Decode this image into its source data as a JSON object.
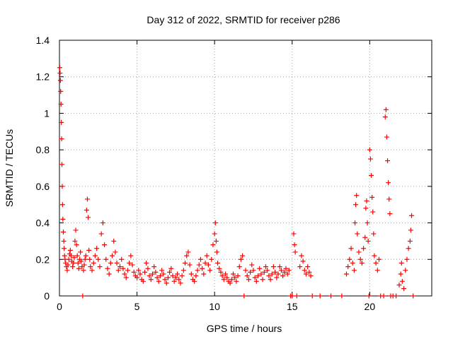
{
  "chart_data": {
    "type": "scatter",
    "title": "Day 312 of 2022, SRMTID for receiver p286",
    "xlabel": "GPS time / hours",
    "ylabel": "SRMTID / TECUs",
    "xlim": [
      0,
      24
    ],
    "ylim": [
      0,
      1.4
    ],
    "xticks": [
      0,
      5,
      10,
      15,
      20
    ],
    "yticks": [
      0,
      0.2,
      0.4,
      0.6,
      0.8,
      1,
      1.2,
      1.4
    ],
    "xtick_labels": [
      "0",
      "5",
      "10",
      "15",
      "20"
    ],
    "ytick_labels": [
      "0",
      "0.2",
      "0.4",
      "0.6",
      "0.8",
      "1",
      "1.2",
      "1.4"
    ],
    "grid": true,
    "marker": "+",
    "color": "#ff0000",
    "series": [
      {
        "name": "SRMTID",
        "points": [
          [
            0.02,
            1.25
          ],
          [
            0.04,
            1.22
          ],
          [
            0.06,
            1.18
          ],
          [
            0.08,
            1.12
          ],
          [
            0.1,
            1.05
          ],
          [
            0.12,
            0.95
          ],
          [
            0.14,
            0.86
          ],
          [
            0.16,
            0.72
          ],
          [
            0.18,
            0.6
          ],
          [
            0.2,
            0.5
          ],
          [
            0.22,
            0.42
          ],
          [
            0.25,
            0.35
          ],
          [
            0.28,
            0.3
          ],
          [
            0.3,
            0.26
          ],
          [
            0.33,
            0.22
          ],
          [
            0.36,
            0.2
          ],
          [
            0.4,
            0.18
          ],
          [
            0.45,
            0.16
          ],
          [
            0.5,
            0.14
          ],
          [
            0.55,
            0.17
          ],
          [
            0.6,
            0.2
          ],
          [
            0.65,
            0.23
          ],
          [
            0.7,
            0.25
          ],
          [
            0.75,
            0.22
          ],
          [
            0.8,
            0.19
          ],
          [
            0.85,
            0.16
          ],
          [
            0.9,
            0.18
          ],
          [
            0.95,
            0.21
          ],
          [
            1.0,
            0.3
          ],
          [
            1.05,
            0.36
          ],
          [
            1.1,
            0.28
          ],
          [
            1.15,
            0.22
          ],
          [
            1.2,
            0.18
          ],
          [
            1.25,
            0.15
          ],
          [
            1.3,
            0.2
          ],
          [
            1.35,
            0.24
          ],
          [
            1.4,
            0.19
          ],
          [
            1.45,
            0.16
          ],
          [
            1.5,
            0.0
          ],
          [
            1.55,
            0.14
          ],
          [
            1.6,
            0.17
          ],
          [
            1.65,
            0.2
          ],
          [
            1.7,
            0.22
          ],
          [
            1.75,
            0.47
          ],
          [
            1.8,
            0.53
          ],
          [
            1.85,
            0.43
          ],
          [
            1.9,
            0.25
          ],
          [
            1.95,
            0.2
          ],
          [
            2.0,
            0.16
          ],
          [
            2.1,
            0.14
          ],
          [
            2.2,
            0.18
          ],
          [
            2.3,
            0.22
          ],
          [
            2.4,
            0.26
          ],
          [
            2.5,
            0.2
          ],
          [
            2.6,
            0.16
          ],
          [
            2.7,
            0.34
          ],
          [
            2.8,
            0.4
          ],
          [
            2.9,
            0.28
          ],
          [
            3.0,
            0.2
          ],
          [
            3.1,
            0.15
          ],
          [
            3.2,
            0.12
          ],
          [
            3.3,
            0.18
          ],
          [
            3.4,
            0.22
          ],
          [
            3.5,
            0.3
          ],
          [
            3.6,
            0.24
          ],
          [
            3.7,
            0.18
          ],
          [
            3.8,
            0.14
          ],
          [
            3.9,
            0.16
          ],
          [
            4.0,
            0.2
          ],
          [
            4.1,
            0.15
          ],
          [
            4.2,
            0.12
          ],
          [
            4.3,
            0.1
          ],
          [
            4.4,
            0.14
          ],
          [
            4.5,
            0.18
          ],
          [
            4.6,
            0.22
          ],
          [
            4.7,
            0.17
          ],
          [
            4.8,
            0.13
          ],
          [
            4.9,
            0.11
          ],
          [
            5.0,
            0.1
          ],
          [
            5.1,
            0.14
          ],
          [
            5.2,
            0.12
          ],
          [
            5.3,
            0.09
          ],
          [
            5.4,
            0.08
          ],
          [
            5.5,
            0.13
          ],
          [
            5.6,
            0.18
          ],
          [
            5.7,
            0.15
          ],
          [
            5.8,
            0.11
          ],
          [
            5.9,
            0.09
          ],
          [
            6.0,
            0.12
          ],
          [
            6.1,
            0.16
          ],
          [
            6.2,
            0.13
          ],
          [
            6.3,
            0.1
          ],
          [
            6.4,
            0.08
          ],
          [
            6.5,
            0.11
          ],
          [
            6.6,
            0.14
          ],
          [
            6.7,
            0.12
          ],
          [
            6.8,
            0.09
          ],
          [
            6.9,
            0.07
          ],
          [
            7.0,
            0.1
          ],
          [
            7.1,
            0.13
          ],
          [
            7.2,
            0.15
          ],
          [
            7.3,
            0.11
          ],
          [
            7.4,
            0.08
          ],
          [
            7.5,
            0.1
          ],
          [
            7.6,
            0.12
          ],
          [
            7.7,
            0.09
          ],
          [
            7.8,
            0.07
          ],
          [
            7.9,
            0.11
          ],
          [
            8.0,
            0.14
          ],
          [
            8.1,
            0.18
          ],
          [
            8.2,
            0.22
          ],
          [
            8.3,
            0.24
          ],
          [
            8.4,
            0.17
          ],
          [
            8.5,
            0.12
          ],
          [
            8.6,
            0.09
          ],
          [
            8.7,
            0.08
          ],
          [
            8.8,
            0.11
          ],
          [
            8.9,
            0.14
          ],
          [
            9.0,
            0.17
          ],
          [
            9.1,
            0.2
          ],
          [
            9.2,
            0.15
          ],
          [
            9.3,
            0.12
          ],
          [
            9.4,
            0.18
          ],
          [
            9.5,
            0.22
          ],
          [
            9.6,
            0.17
          ],
          [
            9.7,
            0.14
          ],
          [
            9.8,
            0.2
          ],
          [
            9.9,
            0.28
          ],
          [
            10.0,
            0.34
          ],
          [
            10.05,
            0.4
          ],
          [
            10.1,
            0.3
          ],
          [
            10.15,
            0.24
          ],
          [
            10.2,
            0.18
          ],
          [
            10.3,
            0.15
          ],
          [
            10.4,
            0.13
          ],
          [
            10.5,
            0.11
          ],
          [
            10.6,
            0.09
          ],
          [
            10.7,
            0.12
          ],
          [
            10.8,
            0.1
          ],
          [
            10.9,
            0.08
          ],
          [
            11.0,
            0.07
          ],
          [
            11.1,
            0.09
          ],
          [
            11.2,
            0.12
          ],
          [
            11.3,
            0.1
          ],
          [
            11.4,
            0.08
          ],
          [
            11.5,
            0.11
          ],
          [
            11.6,
            0.16
          ],
          [
            11.7,
            0.2
          ],
          [
            11.8,
            0.22
          ],
          [
            11.9,
            0.0
          ],
          [
            12.0,
            0.14
          ],
          [
            12.1,
            0.11
          ],
          [
            12.2,
            0.09
          ],
          [
            12.3,
            0.13
          ],
          [
            12.4,
            0.17
          ],
          [
            12.5,
            0.14
          ],
          [
            12.6,
            0.1
          ],
          [
            12.7,
            0.08
          ],
          [
            12.8,
            0.11
          ],
          [
            12.9,
            0.15
          ],
          [
            13.0,
            0.12
          ],
          [
            13.1,
            0.09
          ],
          [
            13.2,
            0.13
          ],
          [
            13.3,
            0.16
          ],
          [
            13.4,
            0.14
          ],
          [
            13.5,
            0.11
          ],
          [
            13.6,
            0.09
          ],
          [
            13.7,
            0.12
          ],
          [
            13.8,
            0.16
          ],
          [
            13.9,
            0.13
          ],
          [
            14.0,
            0.1
          ],
          [
            14.1,
            0.12
          ],
          [
            14.2,
            0.16
          ],
          [
            14.3,
            0.14
          ],
          [
            14.4,
            0.11
          ],
          [
            14.5,
            0.13
          ],
          [
            14.6,
            0.15
          ],
          [
            14.7,
            0.12
          ],
          [
            14.8,
            0.14
          ],
          [
            14.9,
            0.0
          ],
          [
            15.0,
            0.0
          ],
          [
            15.1,
            0.34
          ],
          [
            15.15,
            0.28
          ],
          [
            15.2,
            0.24
          ],
          [
            15.3,
            0.0
          ],
          [
            15.5,
            0.16
          ],
          [
            15.6,
            0.22
          ],
          [
            15.7,
            0.19
          ],
          [
            15.8,
            0.14
          ],
          [
            15.9,
            0.12
          ],
          [
            16.0,
            0.16
          ],
          [
            16.1,
            0.13
          ],
          [
            16.2,
            0.11
          ],
          [
            16.3,
            0.0
          ],
          [
            16.8,
            0.0
          ],
          [
            17.5,
            0.0
          ],
          [
            18.2,
            0.0
          ],
          [
            18.5,
            0.12
          ],
          [
            18.6,
            0.16
          ],
          [
            18.7,
            0.2
          ],
          [
            18.8,
            0.26
          ],
          [
            18.9,
            0.18
          ],
          [
            19.0,
            0.14
          ],
          [
            19.05,
            0.4
          ],
          [
            19.1,
            0.5
          ],
          [
            19.15,
            0.55
          ],
          [
            19.2,
            0.34
          ],
          [
            19.3,
            0.24
          ],
          [
            19.4,
            0.2
          ],
          [
            19.5,
            0.18
          ],
          [
            19.6,
            0.26
          ],
          [
            19.7,
            0.32
          ],
          [
            19.75,
            0.48
          ],
          [
            19.8,
            0.52
          ],
          [
            19.85,
            0.4
          ],
          [
            19.9,
            0.3
          ],
          [
            19.95,
            0.0
          ],
          [
            20.0,
            0.8
          ],
          [
            20.05,
            0.75
          ],
          [
            20.1,
            0.66
          ],
          [
            20.15,
            0.54
          ],
          [
            20.2,
            0.46
          ],
          [
            20.25,
            0.34
          ],
          [
            20.3,
            0.22
          ],
          [
            20.4,
            0.18
          ],
          [
            20.5,
            0.14
          ],
          [
            20.6,
            0.2
          ],
          [
            20.7,
            0.0
          ],
          [
            20.9,
            0.0
          ],
          [
            21.0,
            0.98
          ],
          [
            21.05,
            1.02
          ],
          [
            21.1,
            0.87
          ],
          [
            21.15,
            0.74
          ],
          [
            21.2,
            0.62
          ],
          [
            21.25,
            0.53
          ],
          [
            21.3,
            0.45
          ],
          [
            21.35,
            0.0
          ],
          [
            21.5,
            0.0
          ],
          [
            21.7,
            0.0
          ],
          [
            21.9,
            0.06
          ],
          [
            22.0,
            0.12
          ],
          [
            22.05,
            0.18
          ],
          [
            22.1,
            0.08
          ],
          [
            22.2,
            0.04
          ],
          [
            22.3,
            0.14
          ],
          [
            22.4,
            0.2
          ],
          [
            22.5,
            0.26
          ],
          [
            22.6,
            0.3
          ],
          [
            22.65,
            0.36
          ],
          [
            22.7,
            0.44
          ],
          [
            22.8,
            0.0
          ]
        ]
      }
    ]
  }
}
